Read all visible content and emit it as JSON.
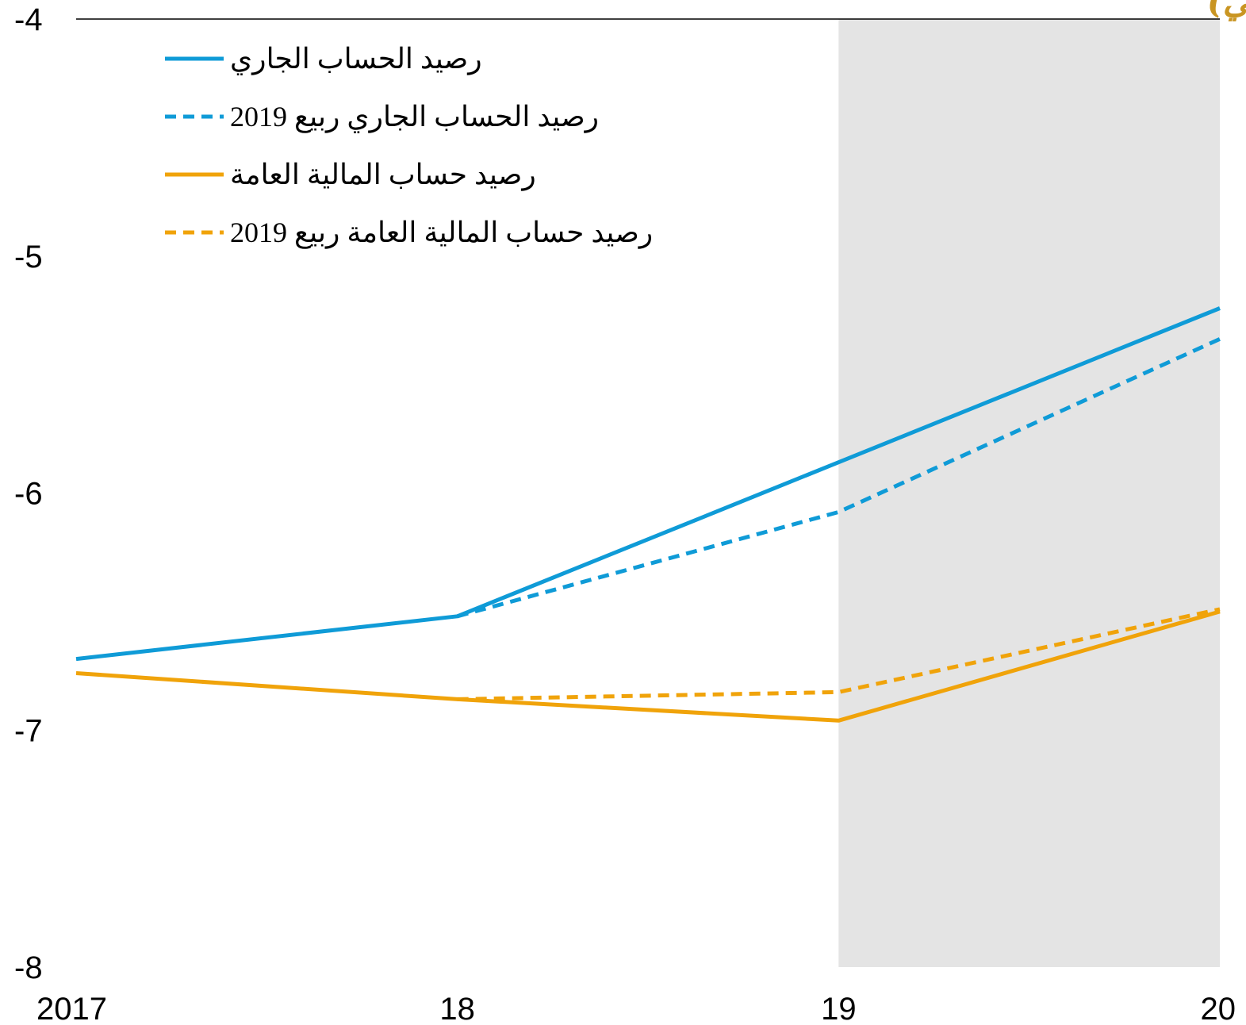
{
  "chart_data": {
    "type": "line",
    "title": "(% من إجمالي الناتج المحلي)",
    "x_tick_labels": [
      "2017",
      "18",
      "19",
      "20"
    ],
    "y_tick_labels": [
      "-4",
      "-5",
      "-6",
      "-7",
      "-8"
    ],
    "x": [
      2017,
      2018,
      2019,
      2020
    ],
    "xlim": [
      2017,
      2020
    ],
    "ylim": [
      -8,
      -4
    ],
    "grid": false,
    "forecast_shading": {
      "from": 2019,
      "to": 2020,
      "color": "#e4e4e4"
    },
    "legend_position": "top-left",
    "series": [
      {
        "name": "رصيد الحساب الجاري",
        "color": "#0f9bd7",
        "style": "solid",
        "values": [
          -6.7,
          -6.52,
          -5.87,
          -5.22
        ]
      },
      {
        "name": "رصيد الحساب الجاري ربيع 2019",
        "color": "#0f9bd7",
        "style": "dashed",
        "values": [
          null,
          -6.52,
          -6.08,
          -5.35
        ]
      },
      {
        "name": "رصيد حساب المالية العامة",
        "color": "#f0a30a",
        "style": "solid",
        "values": [
          -6.76,
          -6.87,
          -6.96,
          -6.5
        ]
      },
      {
        "name": "رصيد حساب المالية العامة ربيع 2019",
        "color": "#f0a30a",
        "style": "dashed",
        "values": [
          null,
          -6.87,
          -6.84,
          -6.49
        ]
      }
    ]
  }
}
